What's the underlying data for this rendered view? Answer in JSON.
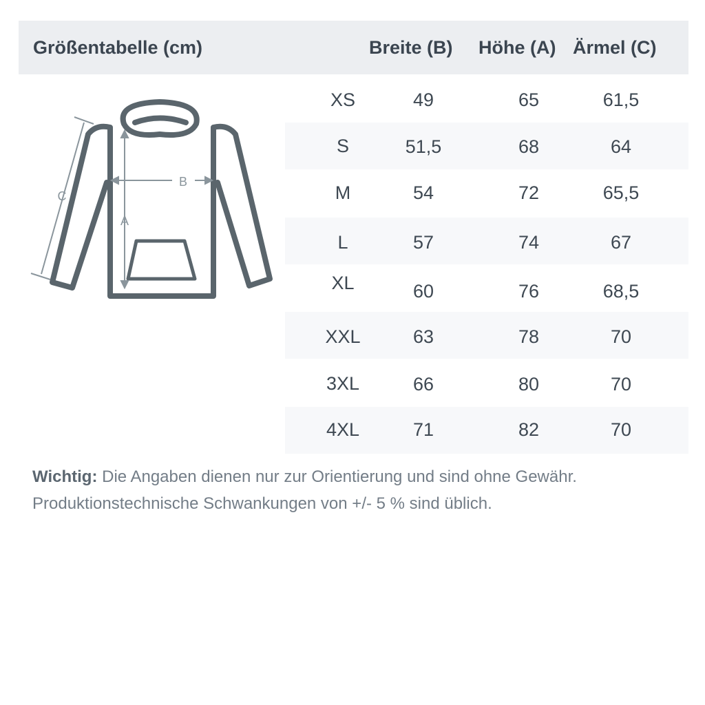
{
  "header": {
    "title": "Größentabelle (cm)",
    "columns": [
      "Breite (B)",
      "Höhe (A)",
      "Ärmel (C)"
    ]
  },
  "diagram": {
    "labels": {
      "width": "B",
      "height": "A",
      "sleeve": "C"
    },
    "line_color": "#5a656c",
    "measure_color": "#8a959c"
  },
  "rows": [
    {
      "size": "XS",
      "breite": "49",
      "hoehe": "65",
      "aermel": "61,5"
    },
    {
      "size": "S",
      "breite": "51,5",
      "hoehe": "68",
      "aermel": "64"
    },
    {
      "size": "M",
      "breite": "54",
      "hoehe": "72",
      "aermel": "65,5"
    },
    {
      "size": "L",
      "breite": "57",
      "hoehe": "74",
      "aermel": "67"
    },
    {
      "size": "XL",
      "breite": "60",
      "hoehe": "76",
      "aermel": "68,5"
    },
    {
      "size": "XXL",
      "breite": "63",
      "hoehe": "78",
      "aermel": "70"
    },
    {
      "size": "3XL",
      "breite": "66",
      "hoehe": "80",
      "aermel": "70"
    },
    {
      "size": "4XL",
      "breite": "71",
      "hoehe": "82",
      "aermel": "70"
    }
  ],
  "note": {
    "label": "Wichtig:",
    "line1": " Die Angaben dienen nur zur Orientierung und sind ohne Gewähr.",
    "line2": "Produktionstechnische Schwankungen von +/- 5 % sind üblich."
  }
}
